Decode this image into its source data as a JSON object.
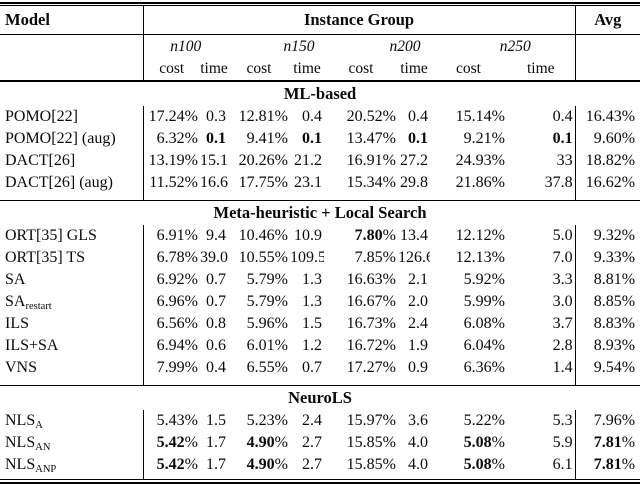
{
  "table": {
    "header": {
      "model": "Model",
      "instance_group": "Instance Group",
      "avg": "Avg",
      "groups": [
        "n100",
        "n150",
        "n200",
        "n250"
      ],
      "cost": "cost",
      "time": "time"
    },
    "sections": [
      {
        "title": "ML-based",
        "rows": [
          {
            "model": "POMO[22]",
            "model_sub": "",
            "values": [
              "17.24%",
              "0.3",
              "12.81%",
              "0.4",
              "20.52%",
              "0.4",
              "15.14%",
              "0.4"
            ],
            "bold": [],
            "avg": "16.43%",
            "bold_avg": false
          },
          {
            "model": "POMO[22] (aug)",
            "model_sub": "",
            "values": [
              "6.32%",
              "0.1",
              "9.41%",
              "0.1",
              "13.47%",
              "0.1",
              "9.21%",
              "0.1"
            ],
            "bold": [
              1,
              3,
              5,
              7
            ],
            "avg": "9.60%",
            "bold_avg": false
          },
          {
            "model": "DACT[26]",
            "model_sub": "",
            "values": [
              "13.19%",
              "15.1",
              "20.26%",
              "21.2",
              "16.91%",
              "27.2",
              "24.93%",
              "33"
            ],
            "bold": [],
            "avg": "18.82%",
            "bold_avg": false
          },
          {
            "model": "DACT[26] (aug)",
            "model_sub": "",
            "values": [
              "11.52%",
              "16.6",
              "17.75%",
              "23.1",
              "15.34%",
              "29.8",
              "21.86%",
              "37.8"
            ],
            "bold": [],
            "avg": "16.62%",
            "bold_avg": false
          }
        ]
      },
      {
        "title": "Meta-heuristic + Local Search",
        "rows": [
          {
            "model": "ORT[35] GLS",
            "model_sub": "",
            "values": [
              "6.91%",
              "9.4",
              "10.46%",
              "10.9",
              "7.80%",
              "13.4",
              "12.12%",
              "5.0"
            ],
            "bold": [
              4
            ],
            "avg": "9.32%",
            "bold_avg": false
          },
          {
            "model": "ORT[35] TS",
            "model_sub": "",
            "values": [
              "6.78%",
              "39.0",
              "10.55%",
              "109.5",
              "7.85%",
              "126.6",
              "12.13%",
              "7.0"
            ],
            "bold": [],
            "avg": "9.33%",
            "bold_avg": false
          },
          {
            "model": "SA",
            "model_sub": "",
            "values": [
              "6.92%",
              "0.7",
              "5.79%",
              "1.3",
              "16.63%",
              "2.1",
              "5.92%",
              "3.3"
            ],
            "bold": [],
            "avg": "8.81%",
            "bold_avg": false
          },
          {
            "model": "SA",
            "model_sub": "restart",
            "values": [
              "6.96%",
              "0.7",
              "5.79%",
              "1.3",
              "16.67%",
              "2.0",
              "5.99%",
              "3.0"
            ],
            "bold": [],
            "avg": "8.85%",
            "bold_avg": false
          },
          {
            "model": "ILS",
            "model_sub": "",
            "values": [
              "6.56%",
              "0.8",
              "5.96%",
              "1.5",
              "16.73%",
              "2.4",
              "6.08%",
              "3.7"
            ],
            "bold": [],
            "avg": "8.83%",
            "bold_avg": false
          },
          {
            "model": "ILS+SA",
            "model_sub": "",
            "values": [
              "6.94%",
              "0.6",
              "6.01%",
              "1.2",
              "16.72%",
              "1.9",
              "6.04%",
              "2.8"
            ],
            "bold": [],
            "avg": "8.93%",
            "bold_avg": false
          },
          {
            "model": "VNS",
            "model_sub": "",
            "values": [
              "7.99%",
              "0.4",
              "6.55%",
              "0.7",
              "17.27%",
              "0.9",
              "6.36%",
              "1.4"
            ],
            "bold": [],
            "avg": "9.54%",
            "bold_avg": false
          }
        ]
      },
      {
        "title": "NeuroLS",
        "rows": [
          {
            "model": "NLS",
            "model_sub": "A",
            "values": [
              "5.43%",
              "1.5",
              "5.23%",
              "2.4",
              "15.97%",
              "3.6",
              "5.22%",
              "5.3"
            ],
            "bold": [],
            "avg": "7.96%",
            "bold_avg": false
          },
          {
            "model": "NLS",
            "model_sub": "AN",
            "values": [
              "5.42%",
              "1.7",
              "4.90%",
              "2.7",
              "15.85%",
              "4.0",
              "5.08%",
              "5.9"
            ],
            "bold": [
              0,
              2,
              6
            ],
            "avg": "7.81%",
            "bold_avg": true
          },
          {
            "model": "NLS",
            "model_sub": "ANP",
            "values": [
              "5.42%",
              "1.7",
              "4.90%",
              "2.7",
              "15.85%",
              "4.0",
              "5.08%",
              "6.1"
            ],
            "bold": [
              0,
              2,
              6
            ],
            "avg": "7.81%",
            "bold_avg": true
          }
        ]
      }
    ]
  }
}
